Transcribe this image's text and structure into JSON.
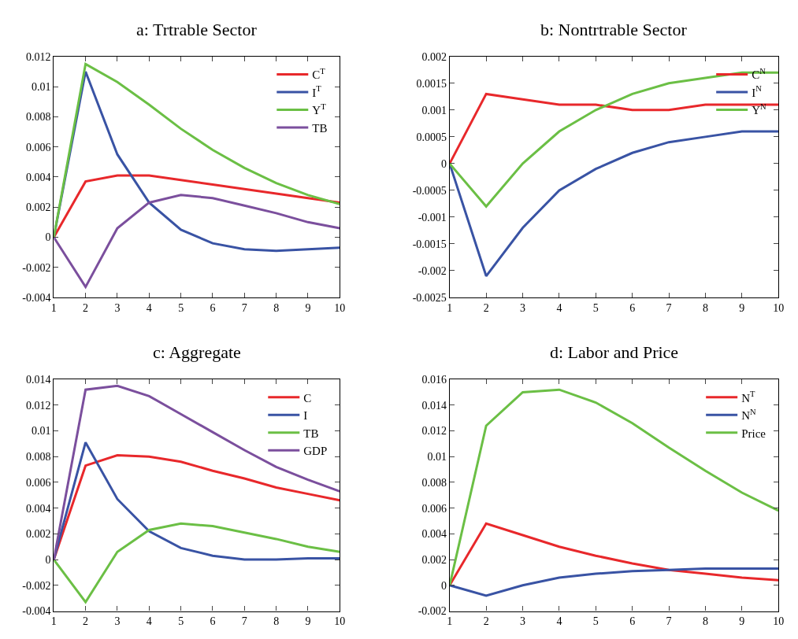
{
  "chart_data": [
    {
      "type": "line",
      "title": "a: Trtrable Sector",
      "x": [
        1,
        2,
        3,
        4,
        5,
        6,
        7,
        8,
        9,
        10
      ],
      "xlim": [
        1,
        10
      ],
      "xticks": [
        1,
        2,
        3,
        4,
        5,
        6,
        7,
        8,
        9,
        10
      ],
      "ylim": [
        -0.004,
        0.012
      ],
      "yticks": [
        -0.004,
        -0.002,
        0,
        0.002,
        0.004,
        0.006,
        0.008,
        0.01,
        0.012
      ],
      "legend": "top right",
      "line_style": "solid",
      "series": [
        {
          "name": "C$^{T}$",
          "color": "#e8282b",
          "values": [
            0,
            0.0037,
            0.0041,
            0.0041,
            0.0038,
            0.0035,
            0.0032,
            0.0029,
            0.0026,
            0.0023
          ]
        },
        {
          "name": "I$^{T}$",
          "color": "#3953a4",
          "values": [
            0,
            0.011,
            0.0055,
            0.0023,
            0.0005,
            -0.0004,
            -0.0008,
            -0.0009,
            -0.0008,
            -0.0007
          ]
        },
        {
          "name": "Y$^{T}$",
          "color": "#6bbf45",
          "values": [
            0,
            0.0115,
            0.0103,
            0.0088,
            0.0072,
            0.0058,
            0.0046,
            0.0036,
            0.0028,
            0.0022
          ]
        },
        {
          "name": "TB",
          "color": "#7b4f9d",
          "values": [
            0,
            -0.0033,
            0.0006,
            0.0023,
            0.0028,
            0.0026,
            0.0021,
            0.0016,
            0.001,
            0.0006
          ]
        }
      ]
    },
    {
      "type": "line",
      "title": "b: Nontrtrable Sector",
      "x": [
        1,
        2,
        3,
        4,
        5,
        6,
        7,
        8,
        9,
        10
      ],
      "xlim": [
        1,
        10
      ],
      "xticks": [
        1,
        2,
        3,
        4,
        5,
        6,
        7,
        8,
        9,
        10
      ],
      "ylim": [
        -0.0025,
        0.002
      ],
      "yticks": [
        -0.0025,
        -0.002,
        -0.0015,
        -0.001,
        -0.0005,
        0,
        0.0005,
        0.001,
        0.0015,
        0.002
      ],
      "legend": "top right",
      "line_style": "solid",
      "series": [
        {
          "name": "C$^{N}$",
          "color": "#e8282b",
          "values": [
            0,
            0.0013,
            0.0012,
            0.0011,
            0.0011,
            0.001,
            0.001,
            0.0011,
            0.0011,
            0.0011
          ]
        },
        {
          "name": "I$^{N}$",
          "color": "#3953a4",
          "values": [
            0,
            -0.0021,
            -0.0012,
            -0.0005,
            -0.0001,
            0.0002,
            0.0004,
            0.0005,
            0.0006,
            0.0006
          ]
        },
        {
          "name": "Y$^{N}$",
          "color": "#6bbf45",
          "values": [
            0,
            -0.0008,
            0,
            0.0006,
            0.001,
            0.0013,
            0.0015,
            0.0016,
            0.0017,
            0.0017
          ]
        }
      ]
    },
    {
      "type": "line",
      "title": "c: Aggregate",
      "x": [
        1,
        2,
        3,
        4,
        5,
        6,
        7,
        8,
        9,
        10
      ],
      "xlim": [
        1,
        10
      ],
      "xticks": [
        1,
        2,
        3,
        4,
        5,
        6,
        7,
        8,
        9,
        10
      ],
      "ylim": [
        -0.004,
        0.014
      ],
      "yticks": [
        -0.004,
        -0.002,
        0,
        0.002,
        0.004,
        0.006,
        0.008,
        0.01,
        0.012,
        0.014
      ],
      "legend": "top right",
      "line_style": "solid",
      "series": [
        {
          "name": "C",
          "color": "#e8282b",
          "values": [
            0,
            0.0073,
            0.0081,
            0.008,
            0.0076,
            0.0069,
            0.0063,
            0.0056,
            0.0051,
            0.0046
          ]
        },
        {
          "name": "I",
          "color": "#3953a4",
          "values": [
            0,
            0.0091,
            0.0047,
            0.0022,
            0.0009,
            0.0003,
            0,
            0,
            0.0001,
            0.0001
          ]
        },
        {
          "name": "TB",
          "color": "#6bbf45",
          "values": [
            0,
            -0.0033,
            0.0006,
            0.0023,
            0.0028,
            0.0026,
            0.0021,
            0.0016,
            0.001,
            0.0006
          ]
        },
        {
          "name": "GDP",
          "color": "#7b4f9d",
          "values": [
            0,
            0.0132,
            0.0135,
            0.0127,
            0.0113,
            0.0099,
            0.0085,
            0.0072,
            0.0062,
            0.0053
          ]
        }
      ]
    },
    {
      "type": "line",
      "title": "d: Labor and Price",
      "x": [
        1,
        2,
        3,
        4,
        5,
        6,
        7,
        8,
        9,
        10
      ],
      "xlim": [
        1,
        10
      ],
      "xticks": [
        1,
        2,
        3,
        4,
        5,
        6,
        7,
        8,
        9,
        10
      ],
      "ylim": [
        -0.002,
        0.016
      ],
      "yticks": [
        -0.002,
        0,
        0.002,
        0.004,
        0.006,
        0.008,
        0.01,
        0.012,
        0.014,
        0.016
      ],
      "legend": "top right",
      "line_style": "solid",
      "series": [
        {
          "name": "N$^{T}$",
          "color": "#e8282b",
          "values": [
            0,
            0.0048,
            0.0039,
            0.003,
            0.0023,
            0.0017,
            0.0012,
            0.0009,
            0.0006,
            0.0004
          ]
        },
        {
          "name": "N$^{N}$",
          "color": "#3953a4",
          "values": [
            0,
            -0.0008,
            0,
            0.0006,
            0.0009,
            0.0011,
            0.0012,
            0.0013,
            0.0013,
            0.0013
          ]
        },
        {
          "name": "Price",
          "color": "#6bbf45",
          "values": [
            0,
            0.0124,
            0.015,
            0.0152,
            0.0142,
            0.0126,
            0.0107,
            0.0089,
            0.0072,
            0.0058
          ]
        }
      ]
    }
  ]
}
